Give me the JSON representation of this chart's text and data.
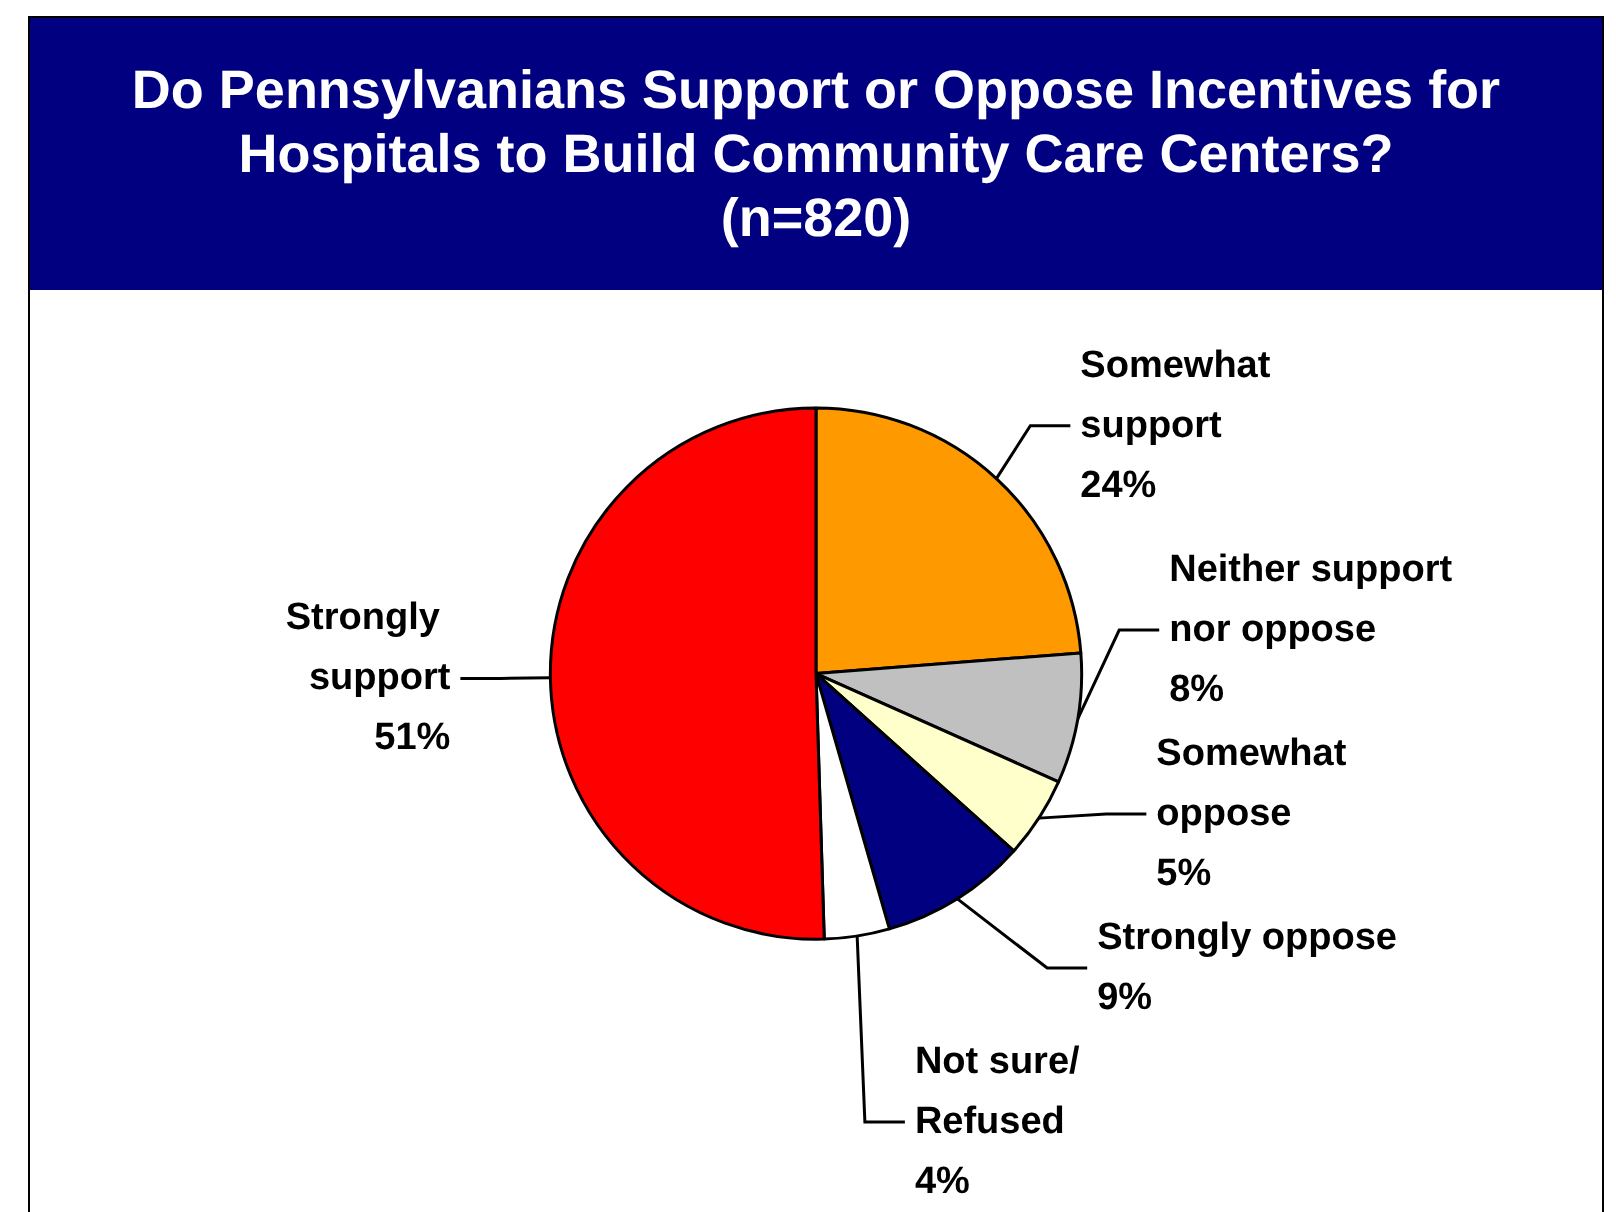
{
  "chart_data": {
    "type": "pie",
    "title": "Do Pennsylvanians Support or Oppose Incentives for Hospitals to Build Community Care Centers?",
    "subtitle": "(n=820)",
    "categories": [
      "Somewhat support",
      "Neither support nor oppose",
      "Somewhat oppose",
      "Strongly oppose",
      "Not sure/ Refused",
      "Strongly support"
    ],
    "values": [
      24,
      8,
      5,
      9,
      4,
      51
    ],
    "value_labels": [
      "24%",
      "8%",
      "5%",
      "9%",
      "4%",
      "51%"
    ],
    "colors": [
      "#ff9900",
      "#c0c0c0",
      "#ffffcc",
      "#000080",
      "#ffffff",
      "#ff0000"
    ],
    "legend": false
  }
}
